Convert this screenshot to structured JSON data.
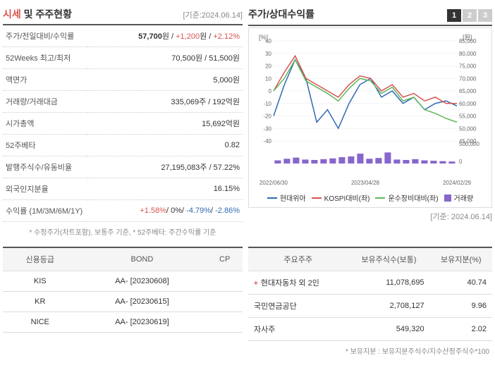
{
  "header": {
    "left_title_accent": "시세",
    "left_title_rest": " 및 주주현황",
    "right_title": "주가/상대수익률",
    "reference_date": "[기준:2024.06.14]"
  },
  "stock_rows": [
    {
      "label": "주가/전일대비/수익률",
      "value_parts": [
        {
          "text": "57,700",
          "class": "bold"
        },
        {
          "text": "원 / ",
          "class": ""
        },
        {
          "text": "+1,200",
          "class": "red"
        },
        {
          "text": "원 / ",
          "class": ""
        },
        {
          "text": "+2.12%",
          "class": "red"
        }
      ]
    },
    {
      "label": "52Weeks 최고/최저",
      "value": "70,500원 / 51,500원"
    },
    {
      "label": "액면가",
      "value": "5,000원"
    },
    {
      "label": "거래량/거래대금",
      "value": "335,069주 / 192억원"
    },
    {
      "label": "시가총액",
      "value": "15,692억원"
    },
    {
      "label": "52주베타",
      "value": "0.82"
    },
    {
      "label": "발행주식수/유동비율",
      "value": "27,195,083주 / 57.22%"
    },
    {
      "label": "외국인지분율",
      "value": "16.15%"
    },
    {
      "label": "수익률 (1M/3M/6M/1Y)",
      "value_parts": [
        {
          "text": "+1.58%",
          "class": "red"
        },
        {
          "text": "/ ",
          "class": ""
        },
        {
          "text": "0%",
          "class": ""
        },
        {
          "text": "/ ",
          "class": ""
        },
        {
          "text": "-4.79%",
          "class": "blue"
        },
        {
          "text": "/ ",
          "class": ""
        },
        {
          "text": "-2.86%",
          "class": "blue"
        }
      ]
    }
  ],
  "left_footnote": "* 수정주가(차트포함), 보통주 기준, * 52주베타: 주간수익률 기준",
  "tabs": [
    "1",
    "2",
    "3"
  ],
  "chart": {
    "type": "line+bar",
    "x_labels": [
      "2022/06/30",
      "2023/04/28",
      "2024/02/29"
    ],
    "left_axis": {
      "label": "[%]",
      "ticks": [
        40,
        30,
        20,
        10,
        0,
        -10,
        -20,
        -30,
        -40
      ]
    },
    "right_axis": {
      "label": "[원]",
      "ticks": [
        85000,
        80000,
        75000,
        70000,
        65000,
        60000,
        55000,
        50000,
        45000
      ]
    },
    "right_bar_axis": {
      "max": 500000,
      "min": 0
    },
    "series": [
      {
        "name": "현대위아",
        "color": "#3169b3",
        "points": [
          -20,
          5,
          25,
          10,
          -25,
          -15,
          -30,
          -10,
          5,
          10,
          -5,
          0,
          -10,
          -5,
          -15,
          -10,
          -8,
          -12
        ]
      },
      {
        "name": "KOSPI대비(좌)",
        "color": "#d9534f",
        "points": [
          0,
          15,
          28,
          10,
          5,
          0,
          -5,
          5,
          12,
          10,
          0,
          5,
          -5,
          -2,
          -8,
          -5,
          -10,
          -10
        ]
      },
      {
        "name": "운수장비대비(좌)",
        "color": "#5cb85c",
        "points": [
          0,
          10,
          25,
          8,
          3,
          -2,
          -8,
          2,
          10,
          8,
          -2,
          3,
          -8,
          -5,
          -15,
          -18,
          -22,
          -25
        ]
      }
    ],
    "volume": {
      "name": "거래량",
      "color": "#8866cc",
      "bars": [
        80000,
        120000,
        150000,
        100000,
        90000,
        110000,
        130000,
        160000,
        180000,
        250000,
        120000,
        140000,
        280000,
        100000,
        90000,
        110000,
        80000,
        70000,
        60000,
        50000
      ]
    },
    "background_color": "#ffffff",
    "grid_color": "#e8e8e8"
  },
  "legend": [
    {
      "name": "현대위아",
      "color": "#3169b3",
      "type": "line"
    },
    {
      "name": "KOSPI대비(좌)",
      "color": "#d9534f",
      "type": "line"
    },
    {
      "name": "운수장비대비(좌)",
      "color": "#5cb85c",
      "type": "line"
    },
    {
      "name": "거래량",
      "color": "#8866cc",
      "type": "box"
    }
  ],
  "chart_date": "[기준: 2024.06.14]",
  "rating_table": {
    "headers": [
      "신용등급",
      "BOND",
      "CP"
    ],
    "rows": [
      [
        "KIS",
        "AA-  [20230608]",
        ""
      ],
      [
        "KR",
        "AA-  [20230615]",
        ""
      ],
      [
        "NICE",
        "AA-  [20230619]",
        ""
      ]
    ]
  },
  "shareholder_table": {
    "headers": [
      "주요주주",
      "보유주식수(보통)",
      "보유지분(%)"
    ],
    "rows": [
      {
        "name": "현대자동차 외 2인",
        "shares": "11,078,695",
        "pct": "40.74",
        "expandable": true
      },
      {
        "name": "국민연금공단",
        "shares": "2,708,127",
        "pct": "9.96",
        "expandable": false
      },
      {
        "name": "자사주",
        "shares": "549,320",
        "pct": "2.02",
        "expandable": false
      }
    ]
  },
  "shareholder_footnote": "* 보유지분 : 보유지분주식수/지수산정주식수*100"
}
